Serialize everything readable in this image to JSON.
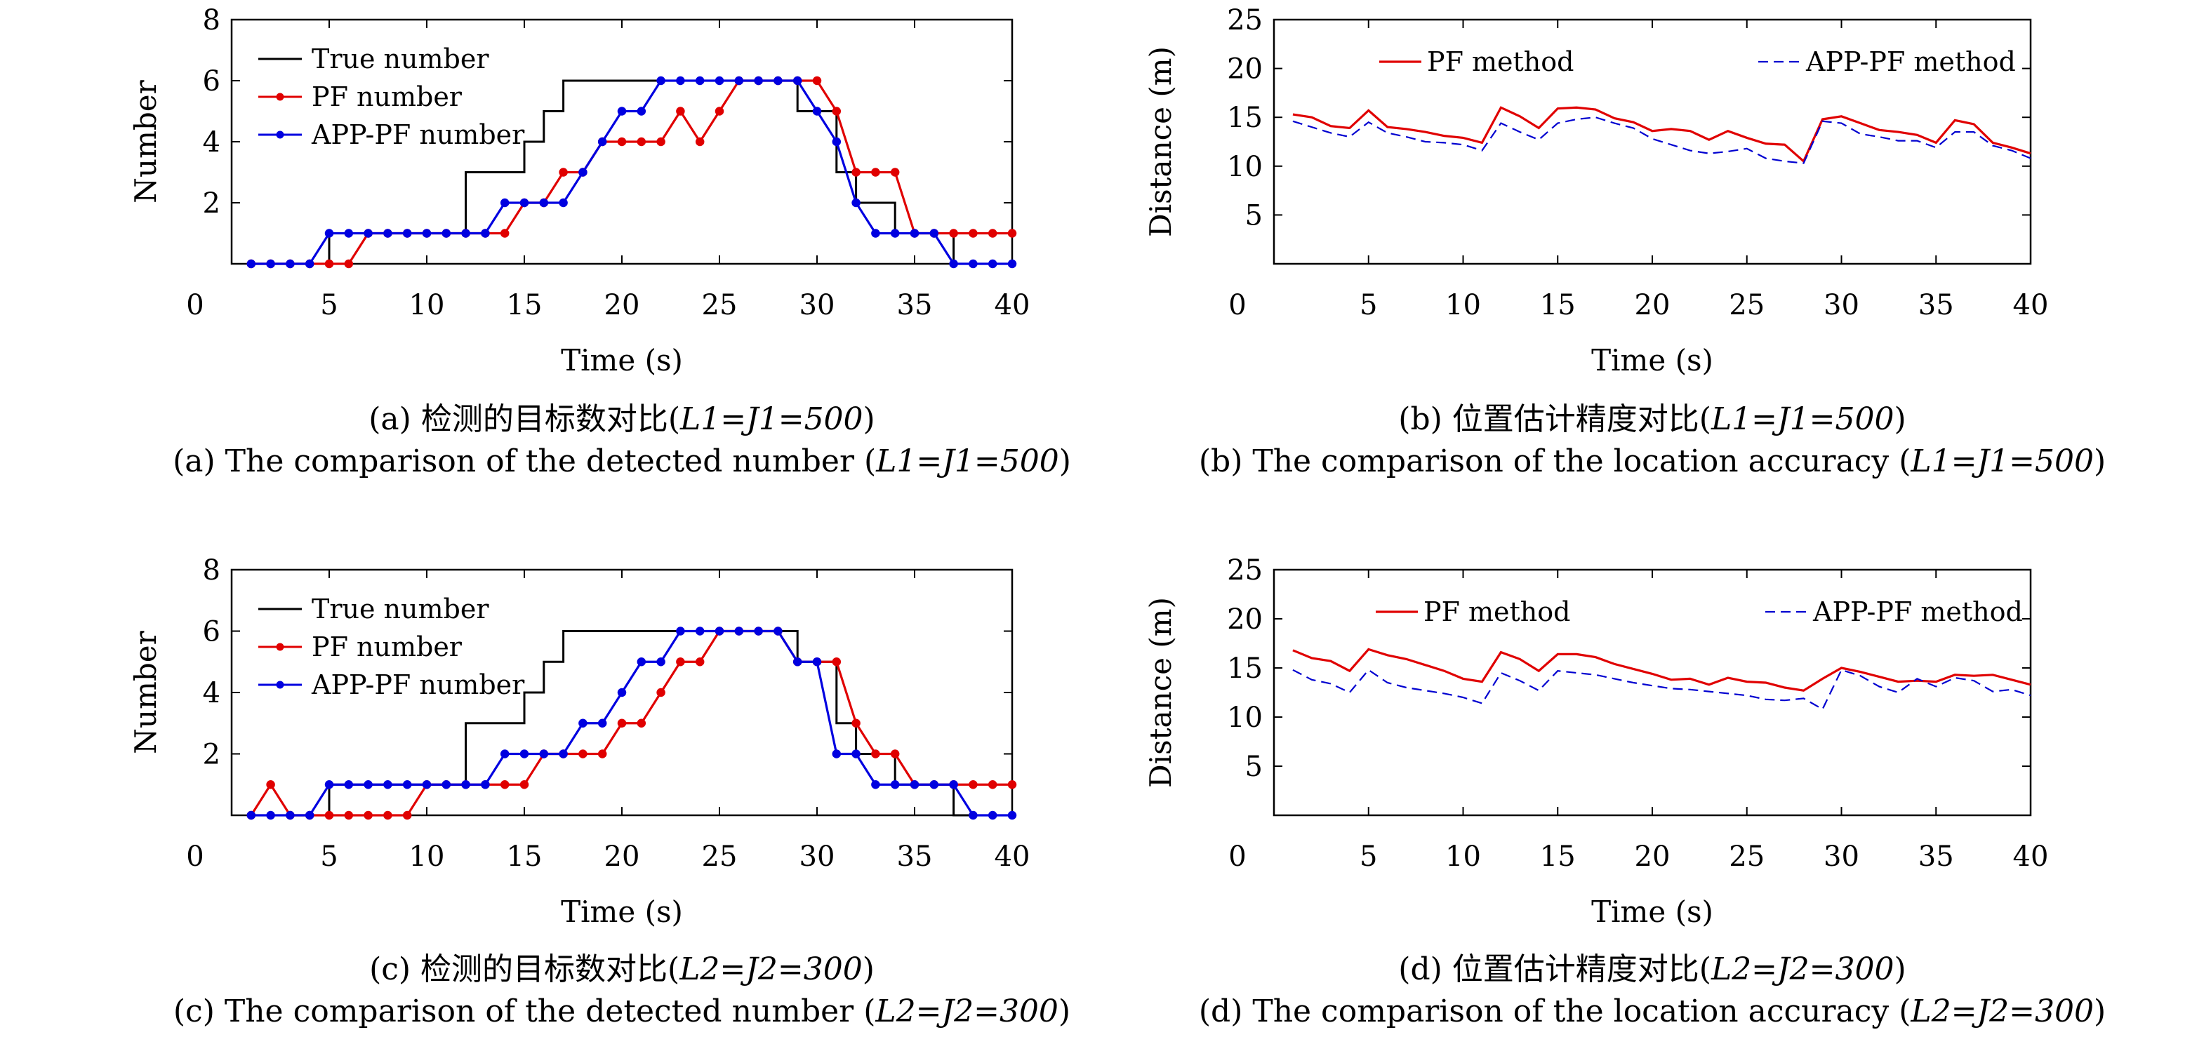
{
  "chart_data": [
    {
      "id": "a",
      "type": "line",
      "xlabel": "Time (s)",
      "ylabel": "Number",
      "xlim": [
        0,
        40
      ],
      "ylim": [
        0,
        8
      ],
      "xticks": [
        0,
        5,
        10,
        15,
        20,
        25,
        30,
        35,
        40
      ],
      "yticks": [
        2,
        4,
        6,
        8
      ],
      "legend_position": "top-left",
      "caption_cn_prefix": "(a) 检测的目标数对比(",
      "caption_en_prefix": "(a) The comparison of the detected number (",
      "caption_param": "L1=J1=500",
      "caption_suffix": ")",
      "series": [
        {
          "name": "True number",
          "color": "#000000",
          "step": true,
          "markers": false,
          "x": [
            1,
            2,
            3,
            4,
            5,
            6,
            7,
            8,
            9,
            10,
            11,
            12,
            13,
            14,
            15,
            16,
            17,
            18,
            19,
            20,
            21,
            22,
            23,
            24,
            25,
            26,
            27,
            28,
            29,
            30,
            31,
            32,
            33,
            34,
            35,
            36,
            37,
            38,
            39,
            40
          ],
          "y": [
            0,
            0,
            0,
            0,
            1,
            1,
            1,
            1,
            1,
            1,
            1,
            3,
            3,
            3,
            4,
            5,
            6,
            6,
            6,
            6,
            6,
            6,
            6,
            6,
            6,
            6,
            6,
            6,
            5,
            5,
            3,
            2,
            2,
            1,
            1,
            1,
            0,
            0,
            0,
            0
          ]
        },
        {
          "name": "PF number",
          "color": "#e00000",
          "step": false,
          "markers": true,
          "x": [
            1,
            2,
            3,
            4,
            5,
            6,
            7,
            8,
            9,
            10,
            11,
            12,
            13,
            14,
            15,
            16,
            17,
            18,
            19,
            20,
            21,
            22,
            23,
            24,
            25,
            26,
            27,
            28,
            29,
            30,
            31,
            32,
            33,
            34,
            35,
            36,
            37,
            38,
            39,
            40
          ],
          "y": [
            0,
            0,
            0,
            0,
            0,
            0,
            1,
            1,
            1,
            1,
            1,
            1,
            1,
            1,
            2,
            2,
            3,
            3,
            4,
            4,
            4,
            4,
            5,
            4,
            5,
            6,
            6,
            6,
            6,
            6,
            5,
            3,
            3,
            3,
            1,
            1,
            1,
            1,
            1,
            1
          ]
        },
        {
          "name": "APP-PF number",
          "color": "#0000e0",
          "step": false,
          "markers": true,
          "x": [
            1,
            2,
            3,
            4,
            5,
            6,
            7,
            8,
            9,
            10,
            11,
            12,
            13,
            14,
            15,
            16,
            17,
            18,
            19,
            20,
            21,
            22,
            23,
            24,
            25,
            26,
            27,
            28,
            29,
            30,
            31,
            32,
            33,
            34,
            35,
            36,
            37,
            38,
            39,
            40
          ],
          "y": [
            0,
            0,
            0,
            0,
            1,
            1,
            1,
            1,
            1,
            1,
            1,
            1,
            1,
            2,
            2,
            2,
            2,
            3,
            4,
            5,
            5,
            6,
            6,
            6,
            6,
            6,
            6,
            6,
            6,
            5,
            4,
            2,
            1,
            1,
            1,
            1,
            0,
            0,
            0,
            0
          ]
        }
      ]
    },
    {
      "id": "b",
      "type": "line",
      "xlabel": "Time (s)",
      "ylabel": "Distance (m)",
      "xlim": [
        0,
        40
      ],
      "ylim": [
        0,
        25
      ],
      "xticks": [
        0,
        5,
        10,
        15,
        20,
        25,
        30,
        35,
        40
      ],
      "yticks": [
        5,
        10,
        15,
        20,
        25
      ],
      "legend_position": "top",
      "caption_cn_prefix": "(b) 位置估计精度对比(",
      "caption_en_prefix": "(b) The comparison of the location accuracy (",
      "caption_param": "L1=J1=500",
      "caption_suffix": ")",
      "series": [
        {
          "name": "PF method",
          "color": "#e00000",
          "dashed": false,
          "x": [
            1,
            2,
            3,
            4,
            5,
            6,
            7,
            8,
            9,
            10,
            11,
            12,
            13,
            14,
            15,
            16,
            17,
            18,
            19,
            20,
            21,
            22,
            23,
            24,
            25,
            26,
            27,
            28,
            29,
            30,
            31,
            32,
            33,
            34,
            35,
            36,
            37,
            38,
            39,
            40
          ],
          "y": [
            15.3,
            15.0,
            14.1,
            13.9,
            15.7,
            14.0,
            13.8,
            13.5,
            13.1,
            12.9,
            12.4,
            16.0,
            15.1,
            13.9,
            15.9,
            16.0,
            15.8,
            14.9,
            14.5,
            13.6,
            13.8,
            13.6,
            12.7,
            13.6,
            12.9,
            12.3,
            12.2,
            10.5,
            14.8,
            15.1,
            14.4,
            13.7,
            13.5,
            13.2,
            12.4,
            14.7,
            14.3,
            12.4,
            11.9,
            11.3
          ]
        },
        {
          "name": "APP-PF method",
          "color": "#0000d0",
          "dashed": true,
          "x": [
            1,
            2,
            3,
            4,
            5,
            6,
            7,
            8,
            9,
            10,
            11,
            12,
            13,
            14,
            15,
            16,
            17,
            18,
            19,
            20,
            21,
            22,
            23,
            24,
            25,
            26,
            27,
            28,
            29,
            30,
            31,
            32,
            33,
            34,
            35,
            36,
            37,
            38,
            39,
            40
          ],
          "y": [
            14.6,
            14.0,
            13.4,
            13.0,
            14.5,
            13.4,
            13.0,
            12.5,
            12.4,
            12.2,
            11.6,
            14.4,
            13.5,
            12.7,
            14.4,
            14.8,
            15.0,
            14.4,
            13.9,
            12.8,
            12.2,
            11.6,
            11.3,
            11.5,
            11.8,
            10.8,
            10.5,
            10.3,
            14.6,
            14.4,
            13.3,
            13.0,
            12.6,
            12.6,
            11.9,
            13.5,
            13.5,
            12.1,
            11.6,
            10.8
          ]
        }
      ]
    },
    {
      "id": "c",
      "type": "line",
      "xlabel": "Time (s)",
      "ylabel": "Number",
      "xlim": [
        0,
        40
      ],
      "ylim": [
        0,
        8
      ],
      "xticks": [
        0,
        5,
        10,
        15,
        20,
        25,
        30,
        35,
        40
      ],
      "yticks": [
        2,
        4,
        6,
        8
      ],
      "legend_position": "top-left",
      "caption_cn_prefix": "(c) 检测的目标数对比(",
      "caption_en_prefix": "(c) The comparison of the detected number (",
      "caption_param": "L2=J2=300",
      "caption_suffix": ")",
      "series": [
        {
          "name": "True number",
          "color": "#000000",
          "step": true,
          "markers": false,
          "x": [
            1,
            2,
            3,
            4,
            5,
            6,
            7,
            8,
            9,
            10,
            11,
            12,
            13,
            14,
            15,
            16,
            17,
            18,
            19,
            20,
            21,
            22,
            23,
            24,
            25,
            26,
            27,
            28,
            29,
            30,
            31,
            32,
            33,
            34,
            35,
            36,
            37,
            38,
            39,
            40
          ],
          "y": [
            0,
            0,
            0,
            0,
            1,
            1,
            1,
            1,
            1,
            1,
            1,
            3,
            3,
            3,
            4,
            5,
            6,
            6,
            6,
            6,
            6,
            6,
            6,
            6,
            6,
            6,
            6,
            6,
            5,
            5,
            3,
            2,
            2,
            1,
            1,
            1,
            0,
            0,
            0,
            0
          ]
        },
        {
          "name": "PF number",
          "color": "#e00000",
          "step": false,
          "markers": true,
          "x": [
            1,
            2,
            3,
            4,
            5,
            6,
            7,
            8,
            9,
            10,
            11,
            12,
            13,
            14,
            15,
            16,
            17,
            18,
            19,
            20,
            21,
            22,
            23,
            24,
            25,
            26,
            27,
            28,
            29,
            30,
            31,
            32,
            33,
            34,
            35,
            36,
            37,
            38,
            39,
            40
          ],
          "y": [
            0,
            1,
            0,
            0,
            0,
            0,
            0,
            0,
            0,
            1,
            1,
            1,
            1,
            1,
            1,
            2,
            2,
            2,
            2,
            3,
            3,
            4,
            5,
            5,
            6,
            6,
            6,
            6,
            5,
            5,
            5,
            3,
            2,
            2,
            1,
            1,
            1,
            1,
            1,
            1
          ]
        },
        {
          "name": "APP-PF number",
          "color": "#0000e0",
          "step": false,
          "markers": true,
          "x": [
            1,
            2,
            3,
            4,
            5,
            6,
            7,
            8,
            9,
            10,
            11,
            12,
            13,
            14,
            15,
            16,
            17,
            18,
            19,
            20,
            21,
            22,
            23,
            24,
            25,
            26,
            27,
            28,
            29,
            30,
            31,
            32,
            33,
            34,
            35,
            36,
            37,
            38,
            39,
            40
          ],
          "y": [
            0,
            0,
            0,
            0,
            1,
            1,
            1,
            1,
            1,
            1,
            1,
            1,
            1,
            2,
            2,
            2,
            2,
            3,
            3,
            4,
            5,
            5,
            6,
            6,
            6,
            6,
            6,
            6,
            5,
            5,
            2,
            2,
            1,
            1,
            1,
            1,
            1,
            0,
            0,
            0
          ]
        }
      ]
    },
    {
      "id": "d",
      "type": "line",
      "xlabel": "Time (s)",
      "ylabel": "Distance (m)",
      "xlim": [
        0,
        40
      ],
      "ylim": [
        0,
        25
      ],
      "xticks": [
        0,
        5,
        10,
        15,
        20,
        25,
        30,
        35,
        40
      ],
      "yticks": [
        5,
        10,
        15,
        20,
        25
      ],
      "legend_position": "top",
      "caption_cn_prefix": "(d) 位置估计精度对比(",
      "caption_en_prefix": "(d) The comparison of the location accuracy (",
      "caption_param": "L2=J2=300",
      "caption_suffix": ")",
      "series": [
        {
          "name": "PF method",
          "color": "#e00000",
          "dashed": false,
          "x": [
            1,
            2,
            3,
            4,
            5,
            6,
            7,
            8,
            9,
            10,
            11,
            12,
            13,
            14,
            15,
            16,
            17,
            18,
            19,
            20,
            21,
            22,
            23,
            24,
            25,
            26,
            27,
            28,
            29,
            30,
            31,
            32,
            33,
            34,
            35,
            36,
            37,
            38,
            39,
            40
          ],
          "y": [
            16.8,
            16.0,
            15.7,
            14.7,
            16.9,
            16.3,
            15.9,
            15.3,
            14.7,
            13.9,
            13.6,
            16.6,
            15.9,
            14.7,
            16.4,
            16.4,
            16.1,
            15.4,
            14.9,
            14.4,
            13.8,
            13.9,
            13.3,
            14.0,
            13.6,
            13.5,
            13.0,
            12.7,
            13.9,
            15.0,
            14.6,
            14.1,
            13.6,
            13.7,
            13.6,
            14.3,
            14.2,
            14.3,
            13.8,
            13.3
          ]
        },
        {
          "name": "APP-PF method",
          "color": "#0000d0",
          "dashed": true,
          "x": [
            1,
            2,
            3,
            4,
            5,
            6,
            7,
            8,
            9,
            10,
            11,
            12,
            13,
            14,
            15,
            16,
            17,
            18,
            19,
            20,
            21,
            22,
            23,
            24,
            25,
            26,
            27,
            28,
            29,
            30,
            31,
            32,
            33,
            34,
            35,
            36,
            37,
            38,
            39,
            40
          ],
          "y": [
            14.8,
            13.8,
            13.4,
            12.5,
            14.8,
            13.5,
            13.0,
            12.7,
            12.4,
            12.0,
            11.4,
            14.5,
            13.7,
            12.7,
            14.7,
            14.5,
            14.3,
            13.9,
            13.5,
            13.2,
            12.9,
            12.8,
            12.6,
            12.4,
            12.2,
            11.8,
            11.7,
            11.9,
            10.8,
            14.8,
            14.2,
            13.1,
            12.5,
            13.9,
            13.1,
            14.0,
            13.7,
            12.6,
            12.8,
            12.2
          ]
        }
      ]
    }
  ]
}
